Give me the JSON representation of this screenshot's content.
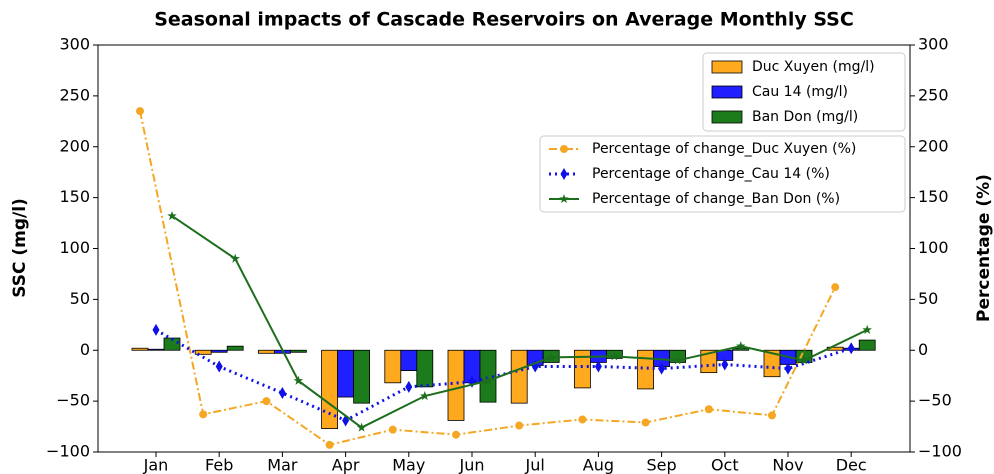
{
  "chart_data": {
    "type": "bar",
    "title": "Seasonal impacts of Cascade Reservoirs on Average Monthly SSC",
    "ylabel": "SSC (mg/l)",
    "y2label": "Percentage (%)",
    "categories": [
      "Jan",
      "Feb",
      "Mar",
      "Apr",
      "May",
      "Jun",
      "Jul",
      "Aug",
      "Sep",
      "Oct",
      "Nov",
      "Dec"
    ],
    "ylim": [
      -100,
      300
    ],
    "yticks": [
      {
        "value": -100,
        "label": "−100"
      },
      {
        "value": -50,
        "label": "−50"
      },
      0,
      50,
      100,
      150,
      200,
      250,
      300
    ],
    "y2lim": [
      -100,
      300
    ],
    "y2ticks": [
      {
        "value": -100,
        "label": "−100"
      },
      {
        "value": -50,
        "label": "−50"
      },
      0,
      50,
      100,
      150,
      200,
      250,
      300
    ],
    "series": [
      {
        "name": "Duc Xuyen (mg/l)",
        "type": "bar",
        "color": "#ffa91f",
        "values": [
          2,
          -4,
          -3,
          -77,
          -32,
          -69,
          -52,
          -37,
          -38,
          -22,
          -26,
          3
        ]
      },
      {
        "name": "Cau 14 (mg/l)",
        "type": "bar",
        "color": "#1f1fff",
        "values": [
          1,
          -2,
          -3,
          -46,
          -20,
          -32,
          -15,
          -12,
          -16,
          -10,
          -14,
          2
        ]
      },
      {
        "name": "Ban Don (mg/l)",
        "type": "bar",
        "color": "#1c7c1c",
        "values": [
          12,
          4,
          -2,
          -52,
          -36,
          -51,
          -12,
          -8,
          -12,
          2,
          -12,
          10
        ]
      },
      {
        "name": "Percentage of change_Duc Xuyen (%)",
        "type": "line",
        "axis": "y2",
        "color": "#f5a623",
        "linestyle": "dashdot",
        "marker": "circle",
        "values": [
          235,
          -63,
          -50,
          -93,
          -78,
          -83,
          -74,
          -68,
          -71,
          -58,
          -64,
          62
        ]
      },
      {
        "name": "Percentage of change_Cau 14 (%)",
        "type": "line",
        "axis": "y2",
        "color": "#1010e8",
        "linestyle": "dotted",
        "marker": "diamond",
        "values": [
          20,
          -16,
          -42,
          -69,
          -36,
          -31,
          -16,
          -16,
          -18,
          -14,
          -18,
          2
        ]
      },
      {
        "name": "Percentage of change_Ban Don (%)",
        "type": "line",
        "axis": "y2",
        "color": "#1c6e1c",
        "linestyle": "solid",
        "marker": "star",
        "values": [
          132,
          90,
          -30,
          -76,
          -45,
          -30,
          -7,
          -6,
          -10,
          4,
          -10,
          20
        ]
      }
    ]
  }
}
